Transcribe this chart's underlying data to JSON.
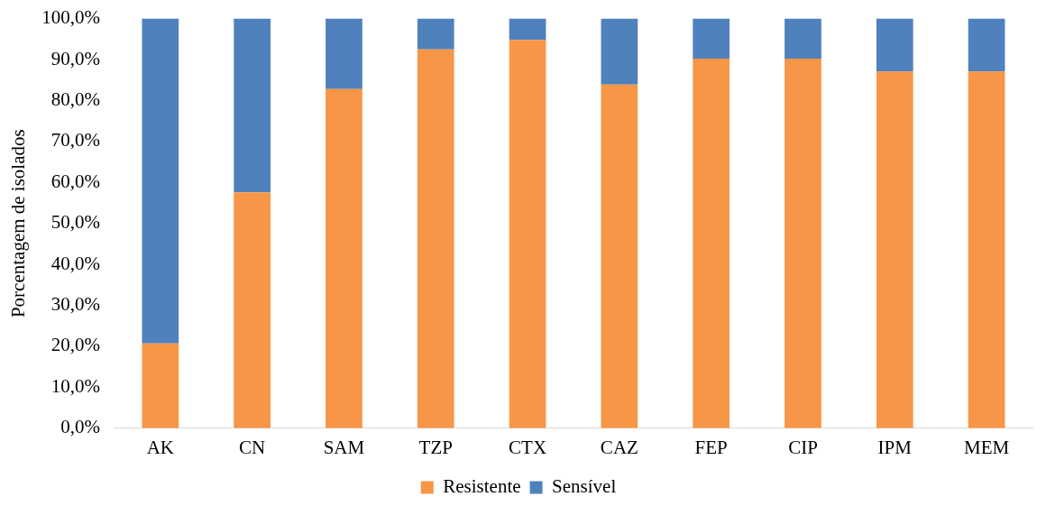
{
  "chart_data": {
    "type": "bar",
    "stacked": true,
    "ylabel": "Porcentagem de isolados",
    "categories": [
      "AK",
      "CN",
      "SAM",
      "TZP",
      "CTX",
      "CAZ",
      "FEP",
      "CIP",
      "IPM",
      "MEM"
    ],
    "series": [
      {
        "name": "Resistente",
        "color": "#f79646",
        "values": [
          20.7,
          57.6,
          82.8,
          92.5,
          94.8,
          83.9,
          90.2,
          90.2,
          87.1,
          87.1
        ]
      },
      {
        "name": "Sensível",
        "color": "#4f81bd",
        "values": [
          79.3,
          42.4,
          17.2,
          7.5,
          5.2,
          16.1,
          9.8,
          9.8,
          12.9,
          12.9
        ]
      }
    ],
    "ylim": [
      0,
      100
    ],
    "yticks": [
      {
        "value": 0,
        "label": "0,0%"
      },
      {
        "value": 10,
        "label": "10,0%"
      },
      {
        "value": 20,
        "label": "20,0%"
      },
      {
        "value": 30,
        "label": "30,0%"
      },
      {
        "value": 40,
        "label": "40,0%"
      },
      {
        "value": 50,
        "label": "50,0%"
      },
      {
        "value": 60,
        "label": "60,0%"
      },
      {
        "value": 70,
        "label": "70,0%"
      },
      {
        "value": 80,
        "label": "80,0%"
      },
      {
        "value": 90,
        "label": "90,0%"
      },
      {
        "value": 100,
        "label": "100,0%"
      }
    ],
    "grid": false,
    "legend": "bottom"
  }
}
